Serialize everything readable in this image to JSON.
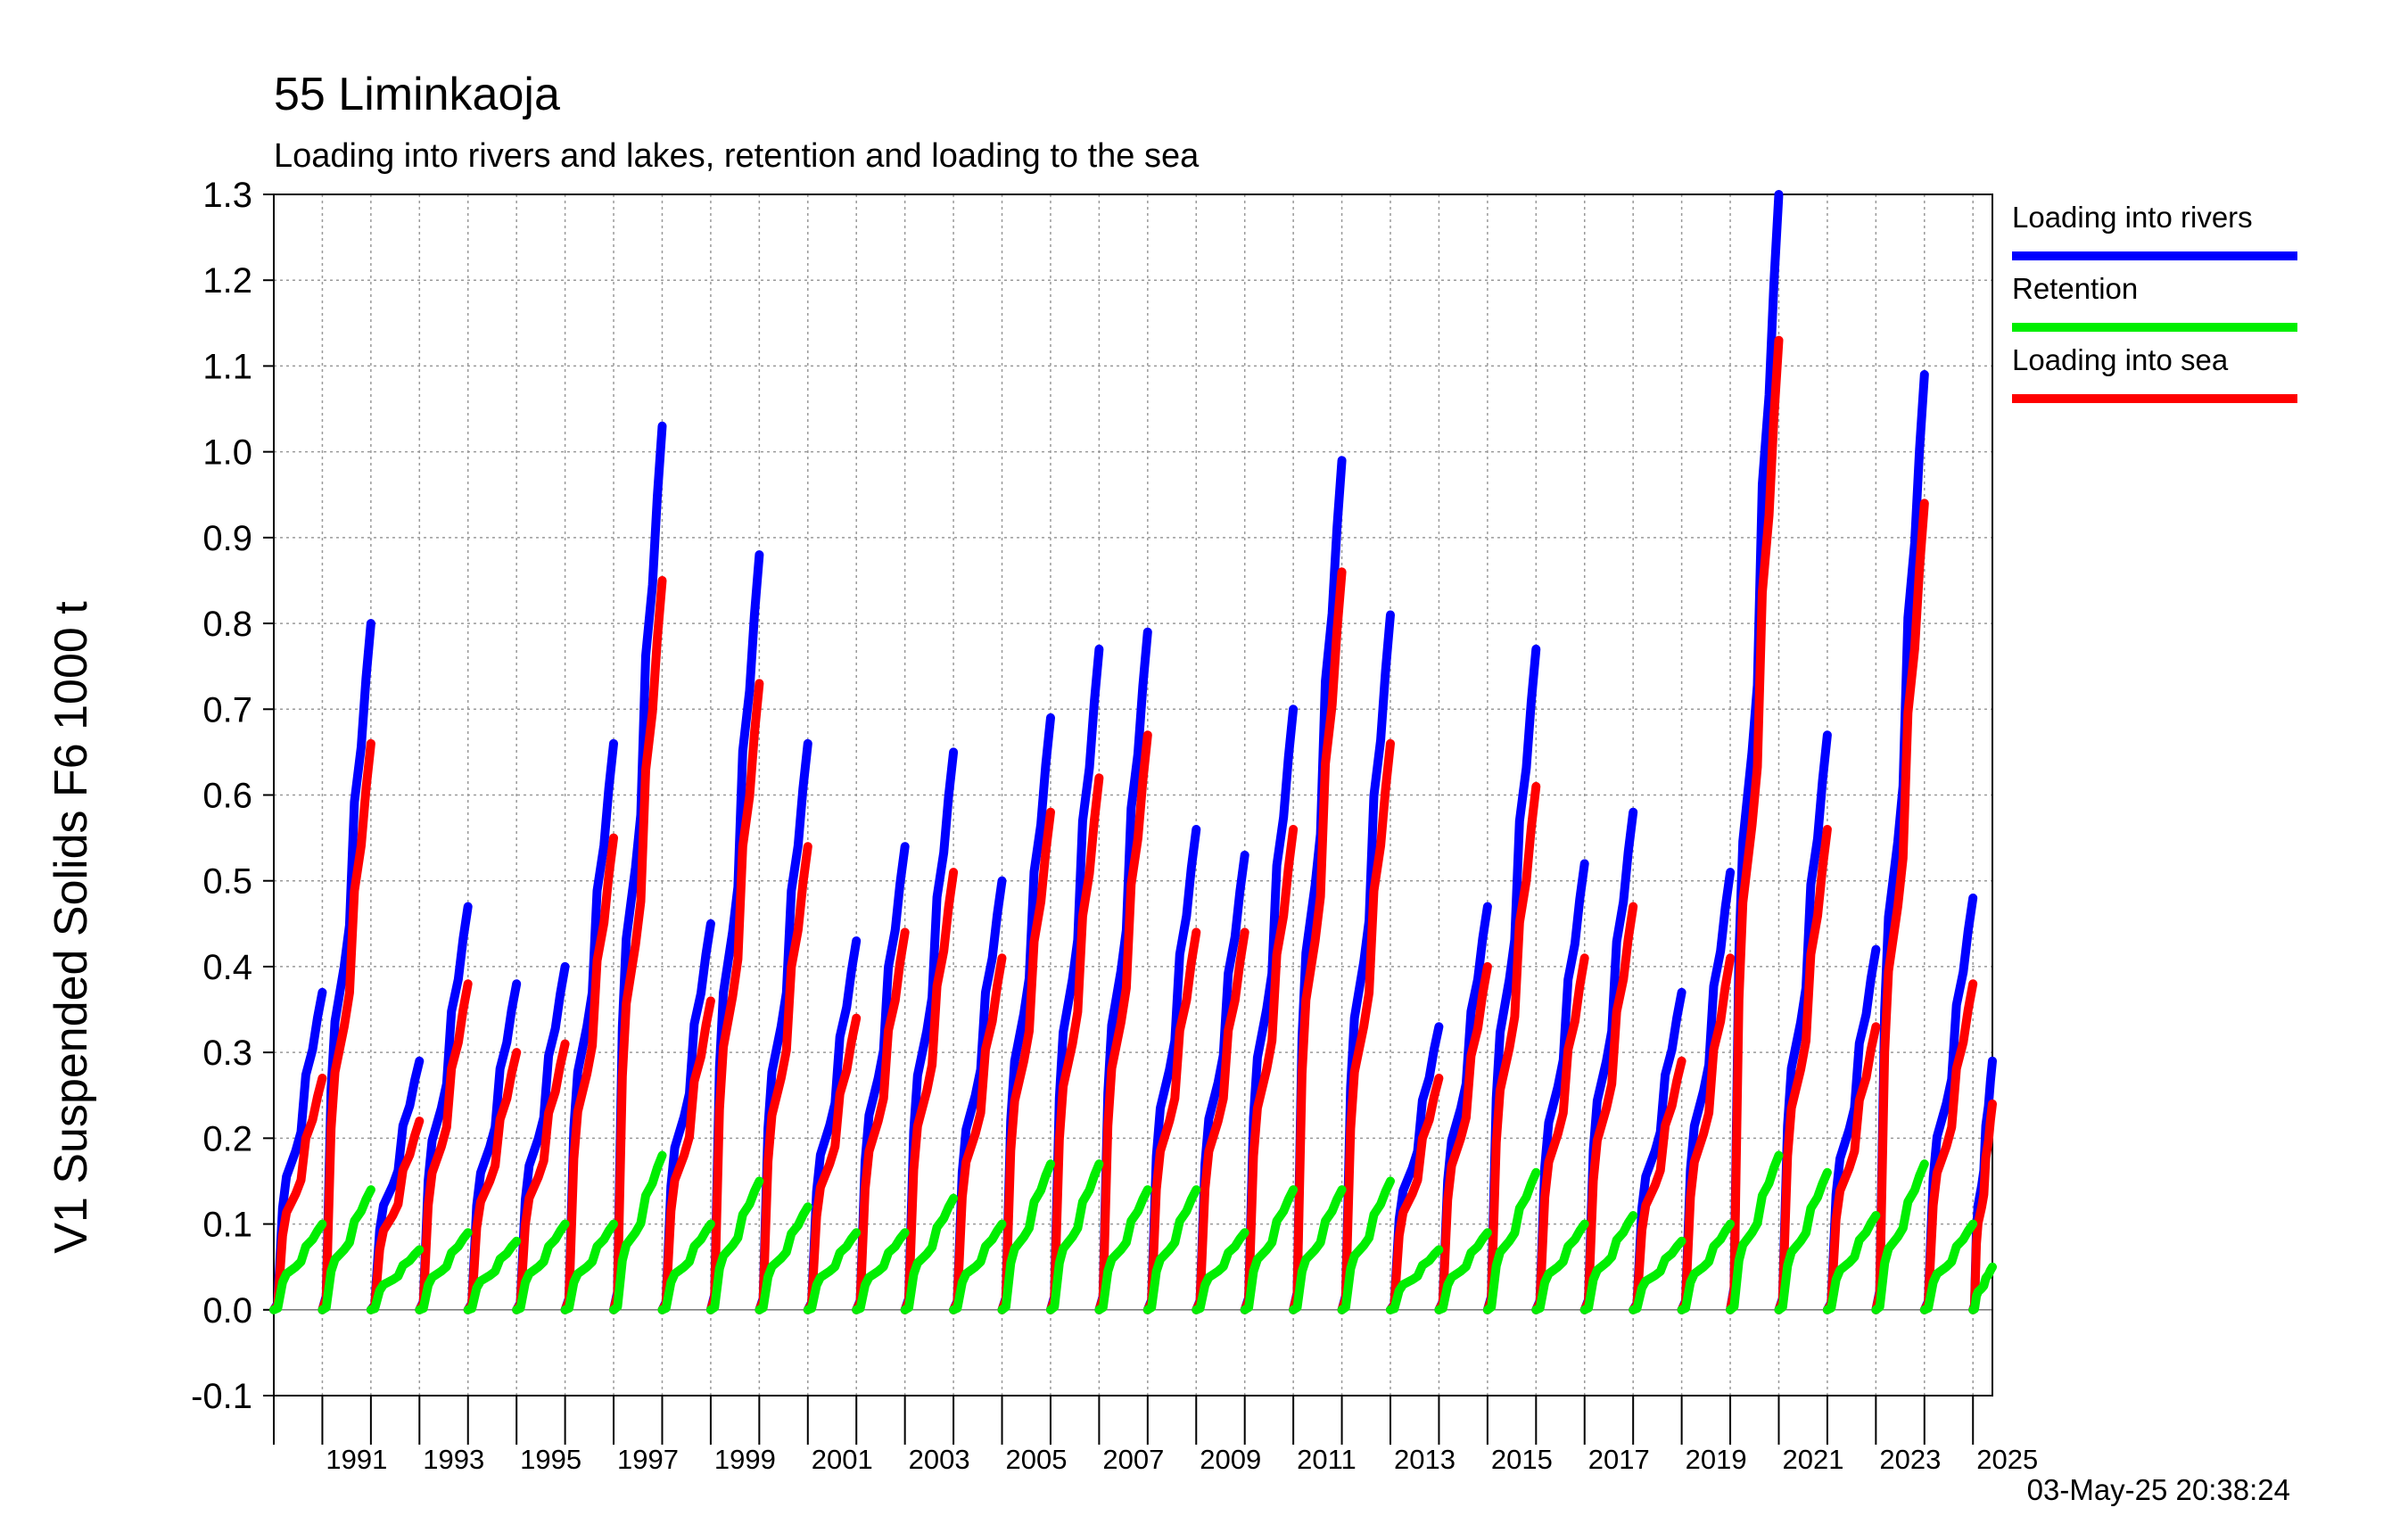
{
  "chart_data": {
    "type": "line",
    "title": "55 Liminkaoja",
    "subtitle": "Loading into rivers and lakes, retention and loading to the sea",
    "ylabel": "V1 Suspended Solids F6 1000 t",
    "xlabel": "",
    "ylim": [
      -0.1,
      1.3
    ],
    "xlim": [
      1990,
      2025.4
    ],
    "yticks": [
      "-0.1",
      "0.0",
      "0.1",
      "0.2",
      "0.3",
      "0.4",
      "0.5",
      "0.6",
      "0.7",
      "0.8",
      "0.9",
      "1.0",
      "1.1",
      "1.2",
      "1.3"
    ],
    "xtick_labels": [
      "1991",
      "1993",
      "1995",
      "1997",
      "1999",
      "2001",
      "2003",
      "2005",
      "2007",
      "2009",
      "2011",
      "2013",
      "2015",
      "2017",
      "2019",
      "2021",
      "2023",
      "2025"
    ],
    "grid": true,
    "legend_position": "right",
    "timestamp": "03-May-25 20:38:24",
    "years": [
      1990,
      1991,
      1992,
      1993,
      1994,
      1995,
      1996,
      1997,
      1998,
      1999,
      2000,
      2001,
      2002,
      2003,
      2004,
      2005,
      2006,
      2007,
      2008,
      2009,
      2010,
      2011,
      2012,
      2013,
      2014,
      2015,
      2016,
      2017,
      2018,
      2019,
      2020,
      2021,
      2022,
      2023,
      2024,
      2025
    ],
    "series": [
      {
        "name": "Loading into rivers",
        "color": "#0000ff",
        "annual_max": [
          0.37,
          0.8,
          0.29,
          0.47,
          0.38,
          0.4,
          0.66,
          1.03,
          0.45,
          0.88,
          0.66,
          0.43,
          0.54,
          0.65,
          0.5,
          0.69,
          0.77,
          0.79,
          0.56,
          0.53,
          0.7,
          0.99,
          0.81,
          0.33,
          0.47,
          0.77,
          0.52,
          0.58,
          0.37,
          0.51,
          1.3,
          0.67,
          0.42,
          1.09,
          0.48,
          0.29
        ]
      },
      {
        "name": "Retention",
        "color": "#00ee00",
        "annual_max": [
          0.1,
          0.14,
          0.07,
          0.09,
          0.08,
          0.1,
          0.1,
          0.18,
          0.1,
          0.15,
          0.12,
          0.09,
          0.09,
          0.13,
          0.1,
          0.17,
          0.17,
          0.14,
          0.14,
          0.09,
          0.14,
          0.14,
          0.15,
          0.07,
          0.09,
          0.16,
          0.1,
          0.11,
          0.08,
          0.1,
          0.18,
          0.16,
          0.11,
          0.17,
          0.1,
          0.05
        ]
      },
      {
        "name": "Loading into sea",
        "color": "#ff0000",
        "annual_max": [
          0.27,
          0.66,
          0.22,
          0.38,
          0.3,
          0.31,
          0.55,
          0.85,
          0.36,
          0.73,
          0.54,
          0.34,
          0.44,
          0.51,
          0.41,
          0.58,
          0.62,
          0.67,
          0.44,
          0.44,
          0.56,
          0.86,
          0.66,
          0.27,
          0.4,
          0.61,
          0.41,
          0.47,
          0.29,
          0.41,
          1.13,
          0.56,
          0.33,
          0.94,
          0.38,
          0.24
        ]
      }
    ]
  }
}
